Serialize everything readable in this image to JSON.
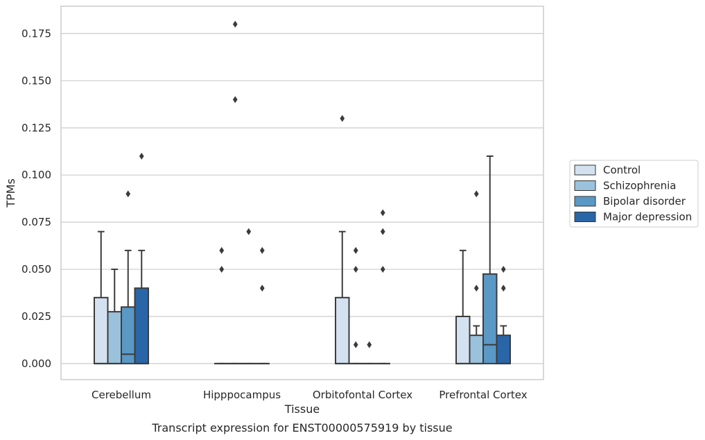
{
  "chart_data": {
    "type": "box",
    "caption": "Transcript expression for ENST00000575919 by tissue",
    "xlabel": "Tissue",
    "ylabel": "TPMs",
    "ylim": [
      -0.0085,
      0.1895
    ],
    "yticks": [
      0.0,
      0.025,
      0.05,
      0.075,
      0.1,
      0.125,
      0.15,
      0.175
    ],
    "ytick_labels": [
      "0.000",
      "0.025",
      "0.050",
      "0.075",
      "0.100",
      "0.125",
      "0.150",
      "0.175"
    ],
    "grid": "horizontal",
    "legend_position": "right",
    "categories": [
      "Cerebellum",
      "Hipppocampus",
      "Orbitofontal Cortex",
      "Prefrontal Cortex"
    ],
    "series": [
      {
        "name": "Control",
        "color": "#d3e1f0",
        "boxes": [
          {
            "q1": 0.0,
            "median": 0.0,
            "q3": 0.035,
            "whisker_low": 0.0,
            "whisker_high": 0.07,
            "outliers": []
          },
          {
            "q1": 0.0,
            "median": 0.0,
            "q3": 0.0,
            "whisker_low": 0.0,
            "whisker_high": 0.0,
            "outliers": [
              0.05,
              0.06
            ]
          },
          {
            "q1": 0.0,
            "median": 0.0,
            "q3": 0.035,
            "whisker_low": 0.0,
            "whisker_high": 0.07,
            "outliers": [
              0.13
            ]
          },
          {
            "q1": 0.0,
            "median": 0.0,
            "q3": 0.025,
            "whisker_low": 0.0,
            "whisker_high": 0.06,
            "outliers": []
          }
        ]
      },
      {
        "name": "Schizophrenia",
        "color": "#9ac2dc",
        "boxes": [
          {
            "q1": 0.0,
            "median": 0.0,
            "q3": 0.0275,
            "whisker_low": 0.0,
            "whisker_high": 0.05,
            "outliers": []
          },
          {
            "q1": 0.0,
            "median": 0.0,
            "q3": 0.0,
            "whisker_low": 0.0,
            "whisker_high": 0.0,
            "outliers": [
              0.14,
              0.18
            ]
          },
          {
            "q1": 0.0,
            "median": 0.0,
            "q3": 0.0,
            "whisker_low": 0.0,
            "whisker_high": 0.0,
            "outliers": [
              0.01,
              0.05,
              0.06
            ]
          },
          {
            "q1": 0.0,
            "median": 0.0,
            "q3": 0.015,
            "whisker_low": 0.0,
            "whisker_high": 0.02,
            "outliers": [
              0.04,
              0.09
            ]
          }
        ]
      },
      {
        "name": "Bipolar disorder",
        "color": "#5a98c6",
        "boxes": [
          {
            "q1": 0.0,
            "median": 0.005,
            "q3": 0.03,
            "whisker_low": 0.0,
            "whisker_high": 0.06,
            "outliers": [
              0.09
            ]
          },
          {
            "q1": 0.0,
            "median": 0.0,
            "q3": 0.0,
            "whisker_low": 0.0,
            "whisker_high": 0.0,
            "outliers": [
              0.07
            ]
          },
          {
            "q1": 0.0,
            "median": 0.0,
            "q3": 0.0,
            "whisker_low": 0.0,
            "whisker_high": 0.0,
            "outliers": [
              0.01
            ]
          },
          {
            "q1": 0.0,
            "median": 0.01,
            "q3": 0.0475,
            "whisker_low": 0.0,
            "whisker_high": 0.11,
            "outliers": []
          }
        ]
      },
      {
        "name": "Major depression",
        "color": "#2966a8",
        "boxes": [
          {
            "q1": 0.0,
            "median": 0.0,
            "q3": 0.04,
            "whisker_low": 0.0,
            "whisker_high": 0.06,
            "outliers": [
              0.11
            ]
          },
          {
            "q1": 0.0,
            "median": 0.0,
            "q3": 0.0,
            "whisker_low": 0.0,
            "whisker_high": 0.0,
            "outliers": [
              0.04,
              0.06
            ]
          },
          {
            "q1": 0.0,
            "median": 0.0,
            "q3": 0.0,
            "whisker_low": 0.0,
            "whisker_high": 0.0,
            "outliers": [
              0.05,
              0.07,
              0.08
            ]
          },
          {
            "q1": 0.0,
            "median": 0.0,
            "q3": 0.015,
            "whisker_low": 0.0,
            "whisker_high": 0.02,
            "outliers": [
              0.04,
              0.05
            ]
          }
        ]
      }
    ]
  }
}
